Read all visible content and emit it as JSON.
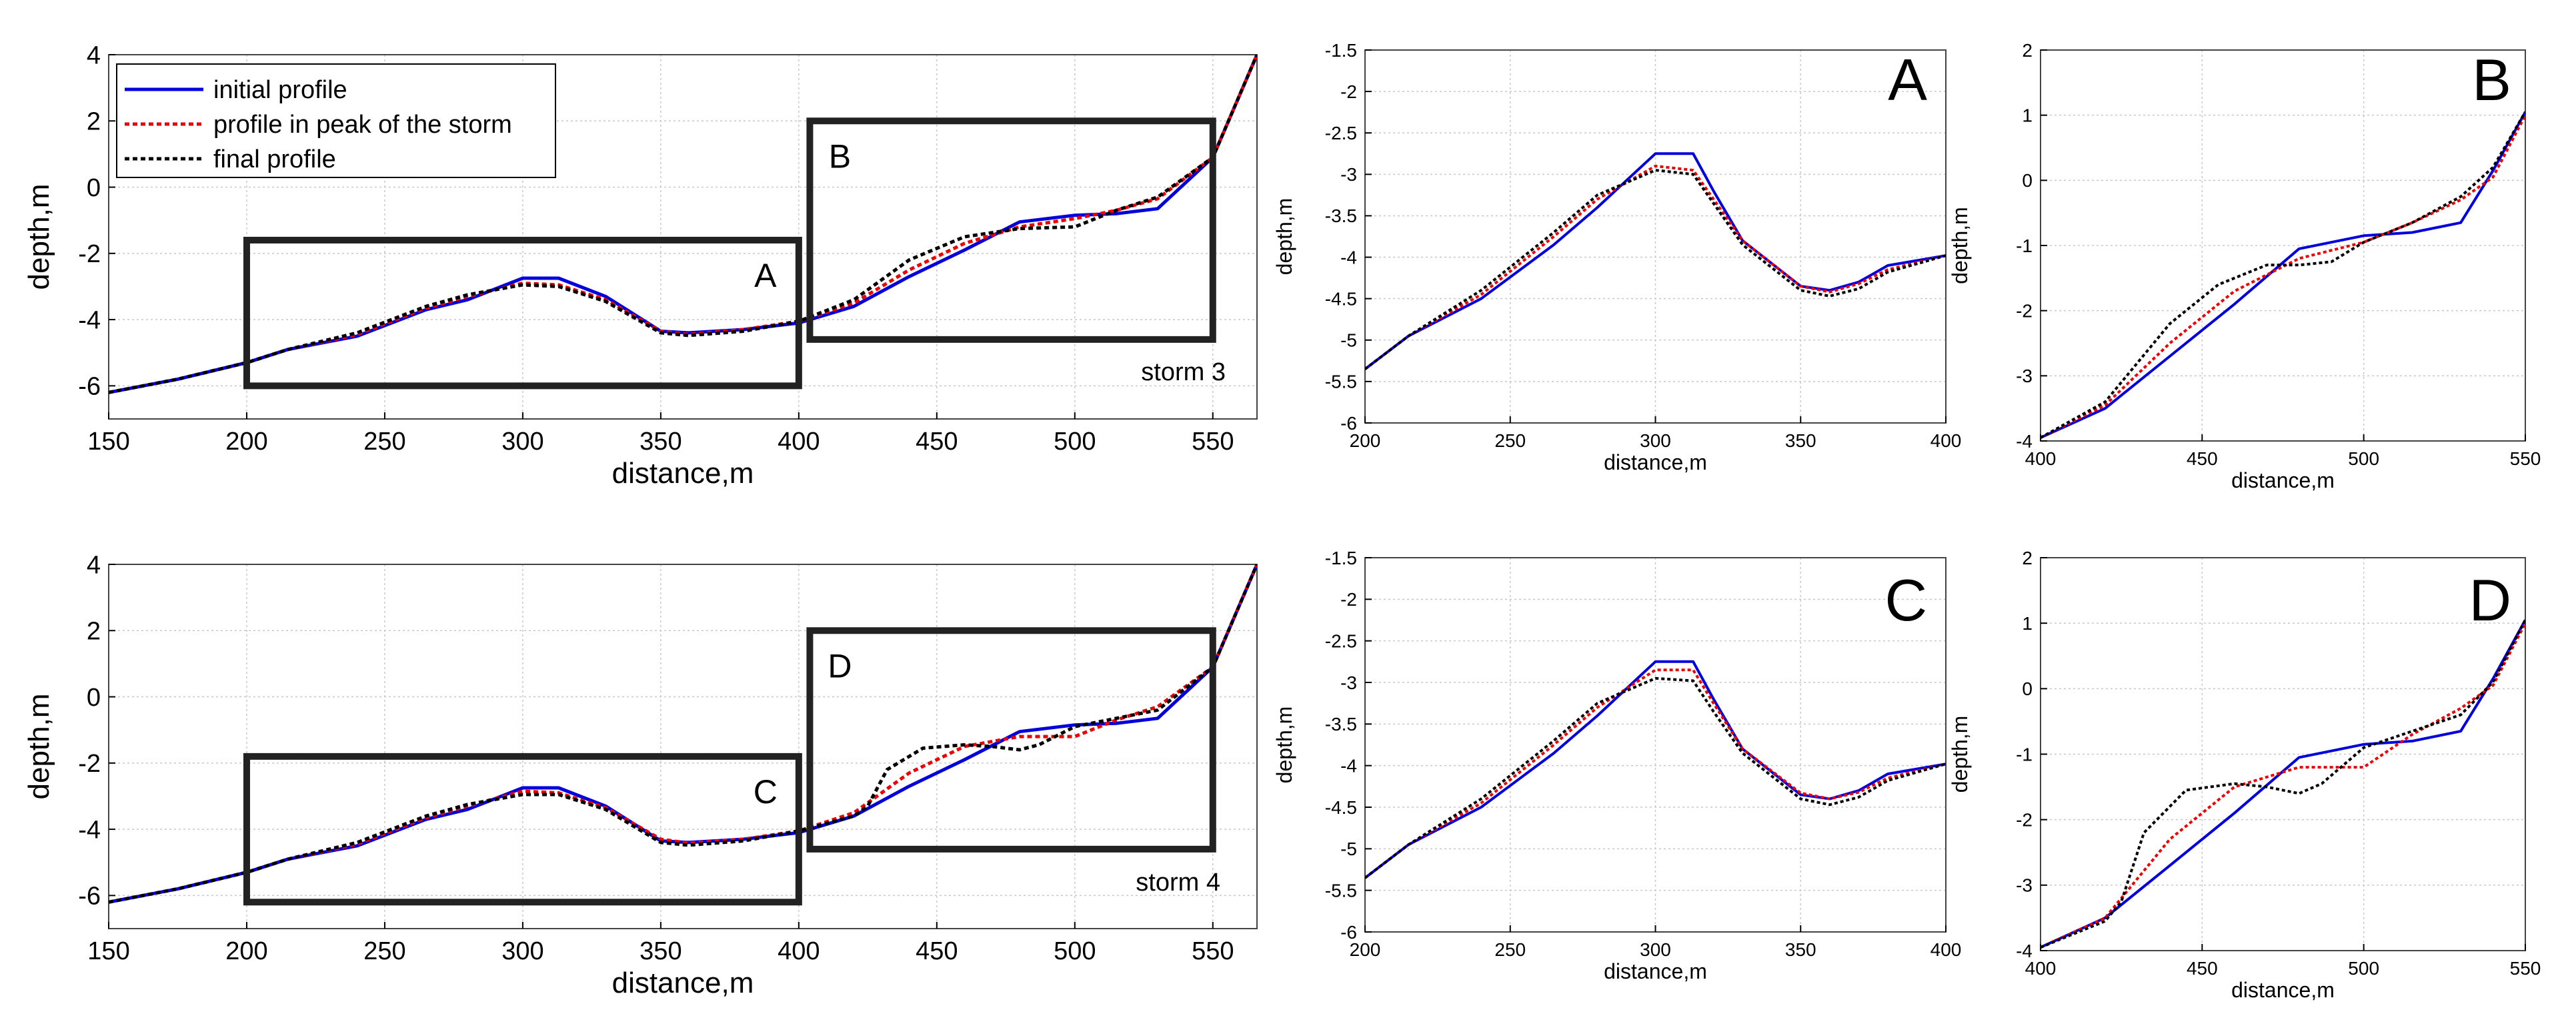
{
  "colors": {
    "initial": "#0000dd",
    "peak": "#ee0000",
    "final": "#000000",
    "grid": "#c8c8c8",
    "box": "#222222"
  },
  "legend": [
    "initial profile",
    "profile in peak of the storm",
    "final profile"
  ],
  "chart_data": [
    {
      "id": "storm3-overview",
      "type": "line",
      "panel_label": "storm 3",
      "xlabel": "distance,m",
      "ylabel": "depth,m",
      "xlim": [
        150,
        566
      ],
      "ylim": [
        -7,
        4
      ],
      "xticks": [
        150,
        200,
        250,
        300,
        350,
        400,
        450,
        500,
        550
      ],
      "yticks": [
        -6,
        -4,
        -2,
        0,
        2,
        4
      ],
      "legend_position": "top-left",
      "boxes": [
        {
          "label": "A",
          "x": [
            200,
            400
          ],
          "y": [
            -6,
            -1.6
          ]
        },
        {
          "label": "B",
          "x": [
            404,
            550
          ],
          "y": [
            -4.6,
            2
          ]
        }
      ],
      "series": [
        {
          "name": "initial profile",
          "style": "solid",
          "x": [
            150,
            175,
            200,
            215,
            240,
            265,
            280,
            300,
            313,
            330,
            350,
            360,
            380,
            400,
            420,
            440,
            460,
            480,
            500,
            515,
            530,
            550,
            566
          ],
          "y": [
            -6.2,
            -5.8,
            -5.3,
            -4.9,
            -4.5,
            -3.7,
            -3.4,
            -2.75,
            -2.75,
            -3.3,
            -4.35,
            -4.4,
            -4.3,
            -4.1,
            -3.6,
            -2.7,
            -1.9,
            -1.05,
            -0.85,
            -0.8,
            -0.65,
            0.9,
            4
          ]
        },
        {
          "name": "profile in peak of the storm",
          "style": "dotted",
          "x": [
            150,
            175,
            200,
            215,
            240,
            265,
            280,
            300,
            313,
            330,
            350,
            360,
            380,
            400,
            420,
            440,
            460,
            480,
            500,
            515,
            530,
            550,
            566
          ],
          "y": [
            -6.2,
            -5.8,
            -5.3,
            -4.9,
            -4.45,
            -3.65,
            -3.3,
            -2.9,
            -2.95,
            -3.4,
            -4.35,
            -4.45,
            -4.3,
            -4.05,
            -3.5,
            -2.5,
            -1.7,
            -1.2,
            -0.95,
            -0.7,
            -0.35,
            0.9,
            4
          ]
        },
        {
          "name": "final profile",
          "style": "dotted",
          "x": [
            150,
            175,
            200,
            215,
            240,
            265,
            280,
            300,
            313,
            330,
            350,
            360,
            380,
            400,
            420,
            440,
            460,
            480,
            500,
            515,
            530,
            550,
            566
          ],
          "y": [
            -6.2,
            -5.8,
            -5.3,
            -4.9,
            -4.4,
            -3.6,
            -3.25,
            -2.95,
            -3.0,
            -3.45,
            -4.4,
            -4.48,
            -4.35,
            -4.05,
            -3.4,
            -2.2,
            -1.5,
            -1.25,
            -1.2,
            -0.7,
            -0.3,
            0.9,
            4
          ]
        }
      ]
    },
    {
      "id": "storm4-overview",
      "type": "line",
      "panel_label": "storm 4",
      "xlabel": "distance,m",
      "ylabel": "depth,m",
      "xlim": [
        150,
        566
      ],
      "ylim": [
        -7,
        4
      ],
      "xticks": [
        150,
        200,
        250,
        300,
        350,
        400,
        450,
        500,
        550
      ],
      "yticks": [
        -6,
        -4,
        -2,
        0,
        2,
        4
      ],
      "boxes": [
        {
          "label": "C",
          "x": [
            200,
            400
          ],
          "y": [
            -6.2,
            -1.8
          ]
        },
        {
          "label": "D",
          "x": [
            404,
            550
          ],
          "y": [
            -4.6,
            2
          ]
        }
      ],
      "series": [
        {
          "name": "initial profile",
          "style": "solid",
          "x": [
            150,
            175,
            200,
            215,
            240,
            265,
            280,
            300,
            313,
            330,
            350,
            360,
            380,
            400,
            420,
            440,
            460,
            480,
            500,
            515,
            530,
            550,
            566
          ],
          "y": [
            -6.2,
            -5.8,
            -5.3,
            -4.9,
            -4.5,
            -3.7,
            -3.4,
            -2.75,
            -2.75,
            -3.3,
            -4.35,
            -4.4,
            -4.3,
            -4.1,
            -3.6,
            -2.7,
            -1.9,
            -1.05,
            -0.85,
            -0.8,
            -0.65,
            0.9,
            4
          ]
        },
        {
          "name": "profile in peak of the storm",
          "style": "dotted",
          "x": [
            150,
            175,
            200,
            215,
            240,
            265,
            280,
            300,
            313,
            330,
            350,
            360,
            380,
            400,
            420,
            440,
            460,
            480,
            500,
            515,
            530,
            550,
            566
          ],
          "y": [
            -6.2,
            -5.8,
            -5.3,
            -4.9,
            -4.45,
            -3.65,
            -3.3,
            -2.85,
            -2.9,
            -3.35,
            -4.3,
            -4.42,
            -4.3,
            -4.05,
            -3.5,
            -2.3,
            -1.5,
            -1.2,
            -1.2,
            -0.7,
            -0.3,
            0.9,
            4
          ]
        },
        {
          "name": "final profile",
          "style": "dotted",
          "x": [
            150,
            175,
            200,
            215,
            240,
            265,
            280,
            300,
            313,
            330,
            350,
            360,
            380,
            400,
            420,
            425,
            432,
            445,
            460,
            470,
            480,
            487,
            500,
            515,
            530,
            550,
            566
          ],
          "y": [
            -6.2,
            -5.8,
            -5.3,
            -4.9,
            -4.4,
            -3.6,
            -3.25,
            -2.95,
            -2.95,
            -3.4,
            -4.4,
            -4.48,
            -4.35,
            -4.05,
            -3.6,
            -3.3,
            -2.2,
            -1.55,
            -1.45,
            -1.5,
            -1.6,
            -1.45,
            -0.9,
            -0.65,
            -0.4,
            0.9,
            4
          ]
        }
      ]
    },
    {
      "id": "zoom-A",
      "type": "line",
      "panel_label": "A",
      "xlabel": "distance,m",
      "ylabel": "depth,m",
      "xlim": [
        200,
        400
      ],
      "ylim": [
        -6,
        -1.5
      ],
      "xticks": [
        200,
        250,
        300,
        350,
        400
      ],
      "yticks": [
        -6,
        -5.5,
        -5,
        -4.5,
        -4,
        -3.5,
        -3,
        -2.5,
        -2,
        -1.5
      ],
      "series": [
        {
          "name": "initial profile",
          "style": "solid",
          "x": [
            200,
            215,
            240,
            265,
            280,
            300,
            313,
            320,
            330,
            350,
            360,
            370,
            380,
            400
          ],
          "y": [
            -5.35,
            -4.95,
            -4.5,
            -3.85,
            -3.4,
            -2.75,
            -2.75,
            -3.2,
            -3.8,
            -4.35,
            -4.4,
            -4.3,
            -4.1,
            -3.98
          ]
        },
        {
          "name": "profile in peak of the storm",
          "style": "dotted",
          "x": [
            200,
            215,
            240,
            265,
            280,
            300,
            313,
            320,
            330,
            350,
            360,
            370,
            380,
            400
          ],
          "y": [
            -5.35,
            -4.95,
            -4.45,
            -3.75,
            -3.3,
            -2.9,
            -2.95,
            -3.3,
            -3.8,
            -4.35,
            -4.42,
            -4.32,
            -4.15,
            -3.98
          ]
        },
        {
          "name": "final profile",
          "style": "dotted",
          "x": [
            200,
            215,
            240,
            265,
            280,
            300,
            313,
            320,
            330,
            350,
            360,
            370,
            380,
            400
          ],
          "y": [
            -5.35,
            -4.95,
            -4.4,
            -3.7,
            -3.25,
            -2.95,
            -3.0,
            -3.35,
            -3.85,
            -4.4,
            -4.47,
            -4.38,
            -4.18,
            -3.98
          ]
        }
      ]
    },
    {
      "id": "zoom-B",
      "type": "line",
      "panel_label": "B",
      "xlabel": "distance,m",
      "ylabel": "depth,m",
      "xlim": [
        400,
        550
      ],
      "ylim": [
        -4,
        2
      ],
      "xticks": [
        400,
        450,
        500,
        550
      ],
      "yticks": [
        -4,
        -3,
        -2,
        -1,
        0,
        1,
        2
      ],
      "series": [
        {
          "name": "initial profile",
          "style": "solid",
          "x": [
            400,
            420,
            440,
            460,
            480,
            500,
            515,
            530,
            540,
            550
          ],
          "y": [
            -3.95,
            -3.5,
            -2.7,
            -1.9,
            -1.05,
            -0.85,
            -0.8,
            -0.65,
            0.15,
            1.05
          ]
        },
        {
          "name": "profile in peak of the storm",
          "style": "dotted",
          "x": [
            400,
            420,
            440,
            460,
            480,
            500,
            515,
            530,
            540,
            550
          ],
          "y": [
            -3.95,
            -3.45,
            -2.5,
            -1.7,
            -1.2,
            -0.95,
            -0.65,
            -0.3,
            0.05,
            1.0
          ]
        },
        {
          "name": "final profile",
          "style": "dotted",
          "x": [
            400,
            420,
            440,
            455,
            470,
            480,
            490,
            500,
            515,
            530,
            540,
            550
          ],
          "y": [
            -3.95,
            -3.4,
            -2.2,
            -1.6,
            -1.3,
            -1.3,
            -1.25,
            -0.95,
            -0.65,
            -0.25,
            0.2,
            1.05
          ]
        }
      ]
    },
    {
      "id": "zoom-C",
      "type": "line",
      "panel_label": "C",
      "xlabel": "distance,m",
      "ylabel": "depth,m",
      "xlim": [
        200,
        400
      ],
      "ylim": [
        -6,
        -1.5
      ],
      "xticks": [
        200,
        250,
        300,
        350,
        400
      ],
      "yticks": [
        -6,
        -5.5,
        -5,
        -4.5,
        -4,
        -3.5,
        -3,
        -2.5,
        -2,
        -1.5
      ],
      "series": [
        {
          "name": "initial profile",
          "style": "solid",
          "x": [
            200,
            215,
            240,
            265,
            280,
            300,
            313,
            320,
            330,
            350,
            360,
            370,
            380,
            400
          ],
          "y": [
            -5.35,
            -4.95,
            -4.5,
            -3.85,
            -3.4,
            -2.75,
            -2.75,
            -3.2,
            -3.8,
            -4.35,
            -4.4,
            -4.3,
            -4.1,
            -3.98
          ]
        },
        {
          "name": "profile in peak of the storm",
          "style": "dotted",
          "x": [
            200,
            215,
            240,
            265,
            280,
            300,
            313,
            320,
            330,
            350,
            360,
            370,
            380,
            400
          ],
          "y": [
            -5.35,
            -4.95,
            -4.45,
            -3.75,
            -3.3,
            -2.85,
            -2.85,
            -3.25,
            -3.8,
            -4.33,
            -4.4,
            -4.32,
            -4.15,
            -3.98
          ]
        },
        {
          "name": "final profile",
          "style": "dotted",
          "x": [
            200,
            215,
            240,
            265,
            280,
            300,
            313,
            320,
            330,
            350,
            360,
            370,
            380,
            400
          ],
          "y": [
            -5.35,
            -4.95,
            -4.4,
            -3.7,
            -3.25,
            -2.95,
            -2.98,
            -3.35,
            -3.85,
            -4.4,
            -4.47,
            -4.38,
            -4.18,
            -3.98
          ]
        }
      ]
    },
    {
      "id": "zoom-D",
      "type": "line",
      "panel_label": "D",
      "xlabel": "distance,m",
      "ylabel": "depth,m",
      "xlim": [
        400,
        550
      ],
      "ylim": [
        -4,
        2
      ],
      "xticks": [
        400,
        450,
        500,
        550
      ],
      "yticks": [
        -4,
        -3,
        -2,
        -1,
        0,
        1,
        2
      ],
      "series": [
        {
          "name": "initial profile",
          "style": "solid",
          "x": [
            400,
            420,
            440,
            460,
            480,
            500,
            515,
            530,
            540,
            550
          ],
          "y": [
            -3.95,
            -3.5,
            -2.7,
            -1.9,
            -1.05,
            -0.85,
            -0.8,
            -0.65,
            0.15,
            1.05
          ]
        },
        {
          "name": "profile in peak of the storm",
          "style": "dotted",
          "x": [
            400,
            420,
            440,
            460,
            480,
            500,
            515,
            530,
            540,
            550
          ],
          "y": [
            -3.95,
            -3.5,
            -2.3,
            -1.5,
            -1.2,
            -1.2,
            -0.7,
            -0.3,
            0.05,
            1.0
          ]
        },
        {
          "name": "final profile",
          "style": "dotted",
          "x": [
            400,
            420,
            425,
            432,
            445,
            460,
            470,
            480,
            487,
            500,
            515,
            530,
            540,
            550
          ],
          "y": [
            -3.95,
            -3.55,
            -3.25,
            -2.2,
            -1.55,
            -1.45,
            -1.5,
            -1.6,
            -1.45,
            -0.9,
            -0.65,
            -0.4,
            0.1,
            1.05
          ]
        }
      ]
    }
  ]
}
